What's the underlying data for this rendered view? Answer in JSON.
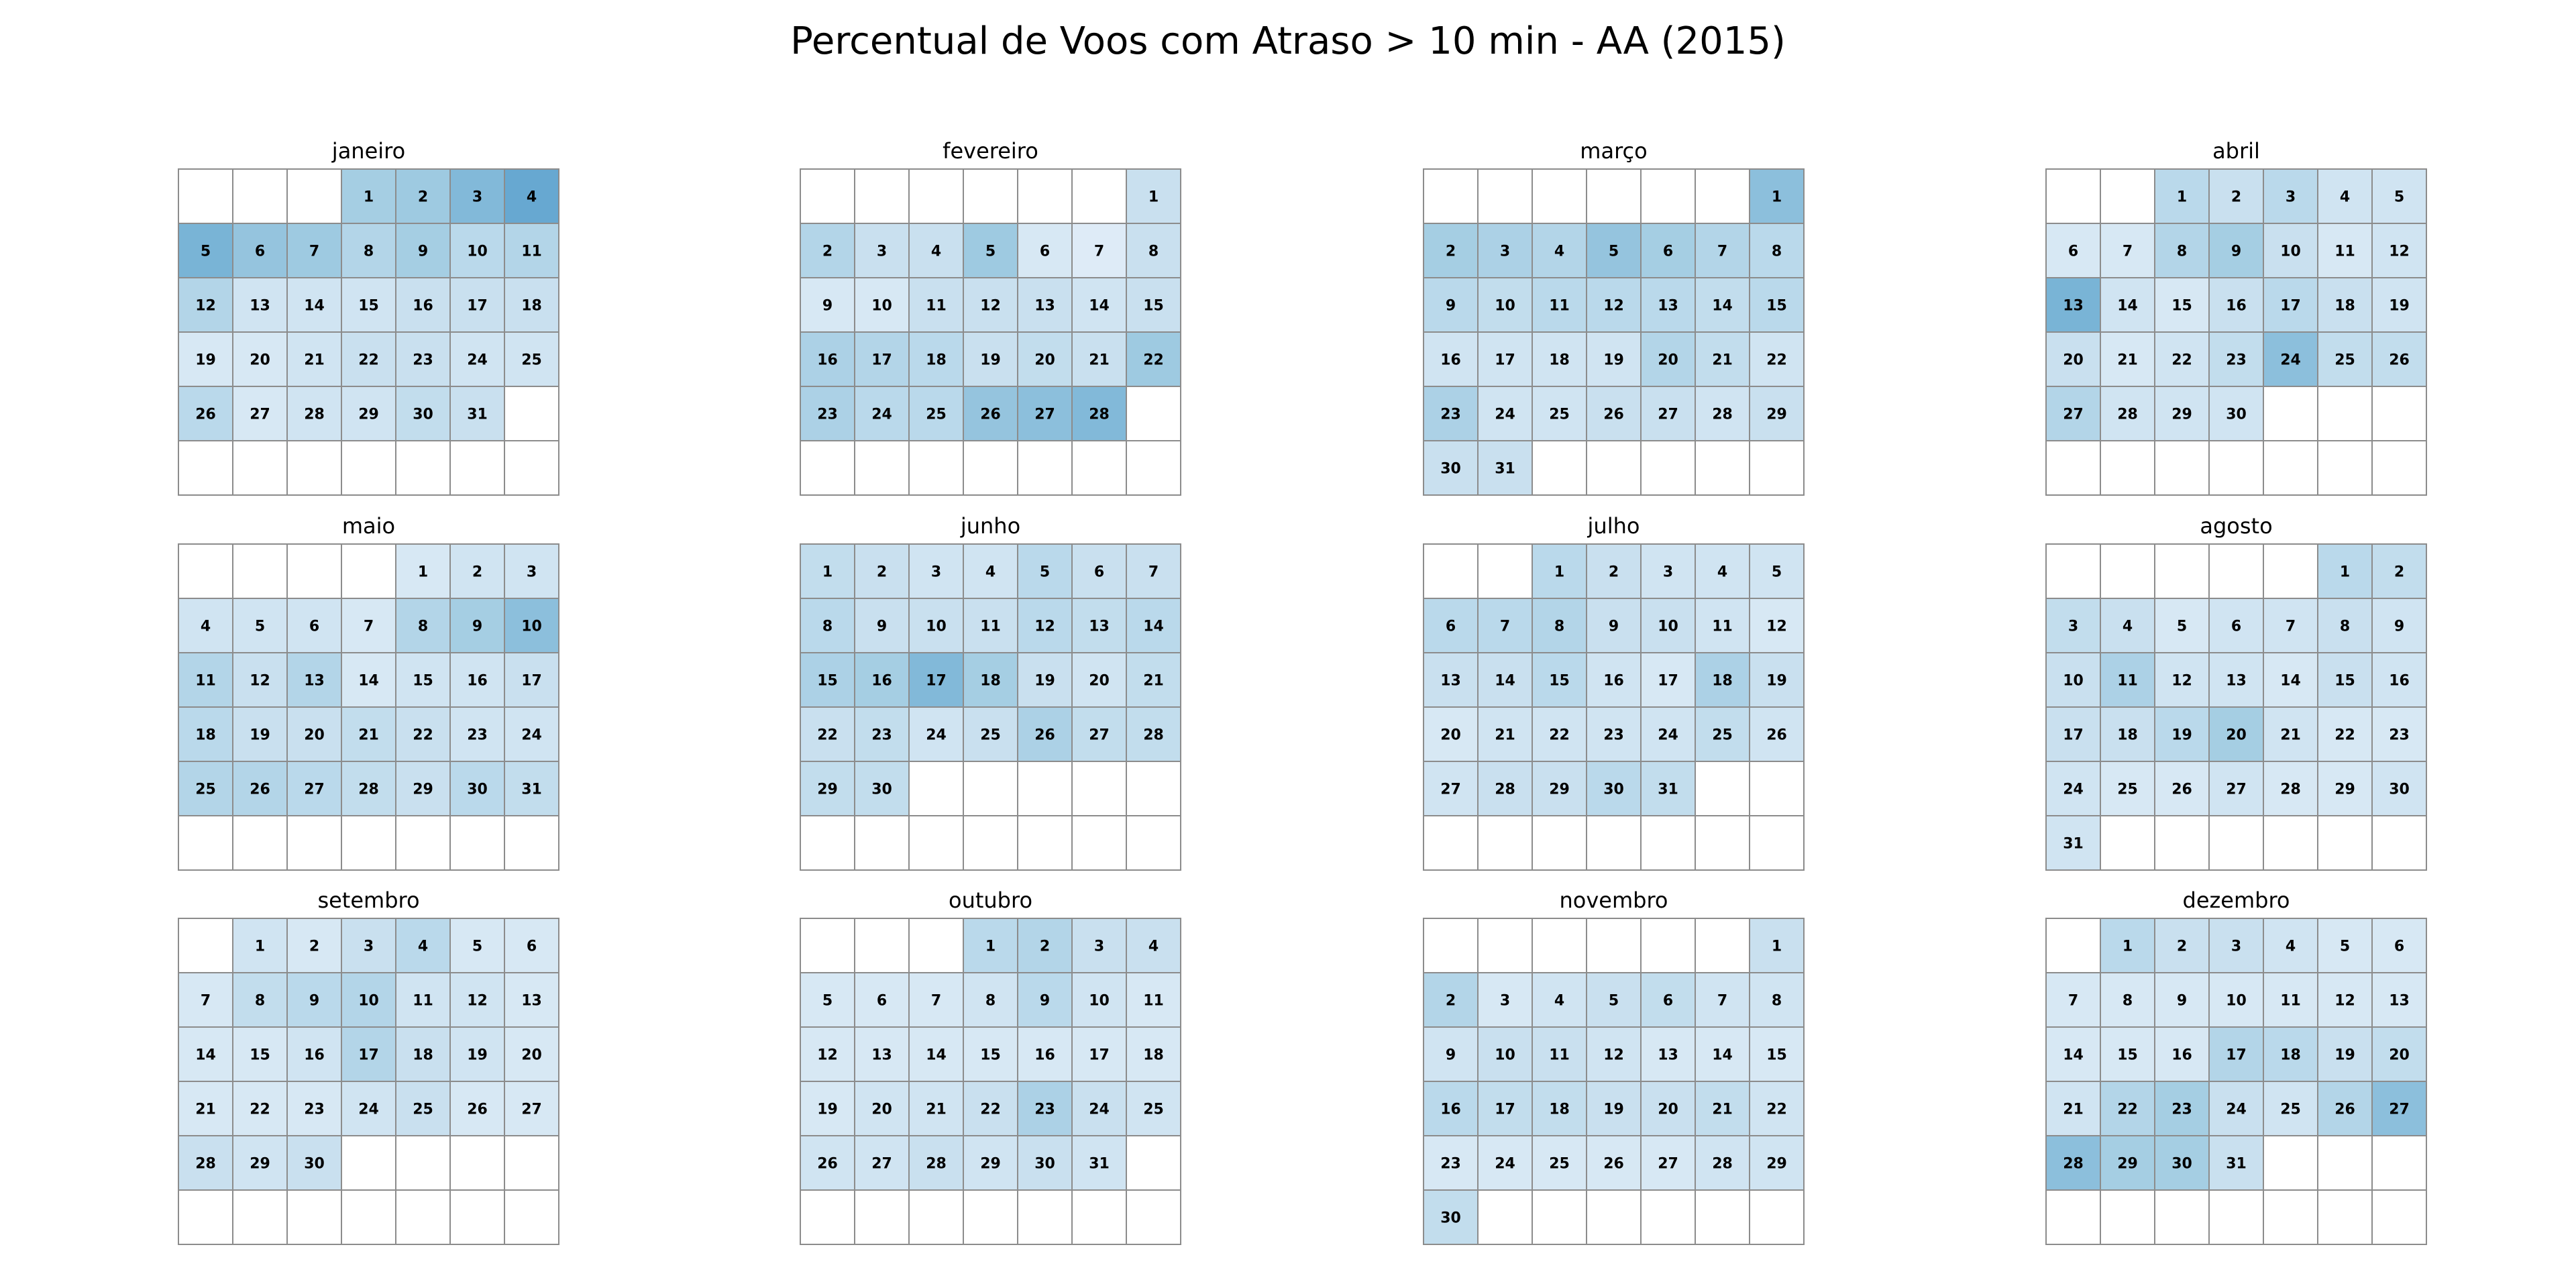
{
  "chart_data": {
    "type": "heatmap",
    "title": "Percentual de Voos com Atraso > 10 min - AA (2015)",
    "year": 2015,
    "layout": "calendar, weeks as rows, Monday-first columns",
    "color_scale": "white-to-blue (light #e5eff9 to #4292c6)",
    "value_units": "relative delay level (0 = lowest, 1 = highest), estimated from cell color",
    "months": [
      {
        "name": "janeiro",
        "first_weekday": 3,
        "days": 31,
        "values": [
          0.45,
          0.5,
          0.65,
          0.8,
          0.7,
          0.55,
          0.5,
          0.35,
          0.45,
          0.3,
          0.35,
          0.35,
          0.15,
          0.15,
          0.15,
          0.2,
          0.2,
          0.2,
          0.1,
          0.1,
          0.15,
          0.2,
          0.2,
          0.15,
          0.15,
          0.3,
          0.1,
          0.15,
          0.15,
          0.25,
          0.2
        ]
      },
      {
        "name": "fevereiro",
        "first_weekday": 6,
        "days": 28,
        "values": [
          0.2,
          0.35,
          0.2,
          0.2,
          0.5,
          0.1,
          0.05,
          0.2,
          0.1,
          0.1,
          0.2,
          0.2,
          0.2,
          0.15,
          0.2,
          0.4,
          0.35,
          0.3,
          0.2,
          0.25,
          0.2,
          0.5,
          0.4,
          0.3,
          0.3,
          0.55,
          0.6,
          0.65
        ]
      },
      {
        "name": "março",
        "first_weekday": 6,
        "days": 31,
        "values": [
          0.6,
          0.45,
          0.4,
          0.35,
          0.55,
          0.45,
          0.35,
          0.3,
          0.3,
          0.25,
          0.3,
          0.3,
          0.3,
          0.25,
          0.3,
          0.15,
          0.15,
          0.15,
          0.15,
          0.35,
          0.25,
          0.15,
          0.4,
          0.15,
          0.15,
          0.2,
          0.2,
          0.15,
          0.2,
          0.2,
          0.2
        ]
      },
      {
        "name": "abril",
        "first_weekday": 2,
        "days": 30,
        "values": [
          0.3,
          0.2,
          0.3,
          0.15,
          0.15,
          0.1,
          0.1,
          0.35,
          0.45,
          0.2,
          0.1,
          0.15,
          0.7,
          0.15,
          0.1,
          0.2,
          0.3,
          0.2,
          0.15,
          0.2,
          0.1,
          0.15,
          0.25,
          0.6,
          0.25,
          0.25,
          0.35,
          0.15,
          0.15,
          0.15
        ]
      },
      {
        "name": "maio",
        "first_weekday": 4,
        "days": 31,
        "values": [
          0.1,
          0.15,
          0.15,
          0.15,
          0.15,
          0.15,
          0.1,
          0.35,
          0.45,
          0.6,
          0.35,
          0.2,
          0.35,
          0.1,
          0.15,
          0.15,
          0.2,
          0.3,
          0.2,
          0.2,
          0.25,
          0.2,
          0.15,
          0.15,
          0.35,
          0.35,
          0.3,
          0.25,
          0.2,
          0.3,
          0.25
        ]
      },
      {
        "name": "junho",
        "first_weekday": 0,
        "days": 30,
        "values": [
          0.25,
          0.2,
          0.15,
          0.15,
          0.3,
          0.2,
          0.2,
          0.3,
          0.2,
          0.2,
          0.2,
          0.3,
          0.25,
          0.3,
          0.4,
          0.45,
          0.65,
          0.45,
          0.2,
          0.15,
          0.25,
          0.2,
          0.25,
          0.15,
          0.2,
          0.4,
          0.25,
          0.25,
          0.25,
          0.25
        ]
      },
      {
        "name": "julho",
        "first_weekday": 2,
        "days": 31,
        "values": [
          0.3,
          0.2,
          0.15,
          0.15,
          0.15,
          0.3,
          0.3,
          0.35,
          0.2,
          0.2,
          0.15,
          0.1,
          0.2,
          0.2,
          0.3,
          0.15,
          0.1,
          0.4,
          0.2,
          0.1,
          0.15,
          0.15,
          0.15,
          0.15,
          0.25,
          0.15,
          0.15,
          0.2,
          0.2,
          0.3,
          0.25
        ]
      },
      {
        "name": "agosto",
        "first_weekday": 5,
        "days": 31,
        "values": [
          0.3,
          0.25,
          0.25,
          0.2,
          0.1,
          0.15,
          0.15,
          0.2,
          0.15,
          0.2,
          0.4,
          0.15,
          0.15,
          0.1,
          0.2,
          0.15,
          0.2,
          0.2,
          0.3,
          0.45,
          0.15,
          0.1,
          0.1,
          0.15,
          0.1,
          0.1,
          0.15,
          0.1,
          0.1,
          0.15,
          0.15
        ]
      },
      {
        "name": "setembro",
        "first_weekday": 1,
        "days": 30,
        "values": [
          0.15,
          0.1,
          0.2,
          0.3,
          0.1,
          0.1,
          0.1,
          0.25,
          0.3,
          0.35,
          0.15,
          0.15,
          0.1,
          0.1,
          0.1,
          0.15,
          0.35,
          0.2,
          0.15,
          0.1,
          0.1,
          0.1,
          0.1,
          0.15,
          0.2,
          0.1,
          0.1,
          0.2,
          0.15,
          0.2
        ]
      },
      {
        "name": "outubro",
        "first_weekday": 3,
        "days": 31,
        "values": [
          0.3,
          0.35,
          0.2,
          0.2,
          0.1,
          0.1,
          0.1,
          0.15,
          0.3,
          0.15,
          0.1,
          0.1,
          0.1,
          0.1,
          0.1,
          0.1,
          0.1,
          0.1,
          0.1,
          0.15,
          0.15,
          0.2,
          0.4,
          0.2,
          0.15,
          0.15,
          0.15,
          0.2,
          0.15,
          0.2,
          0.15
        ]
      },
      {
        "name": "novembro",
        "first_weekday": 6,
        "days": 30,
        "values": [
          0.2,
          0.35,
          0.1,
          0.15,
          0.2,
          0.25,
          0.15,
          0.15,
          0.15,
          0.2,
          0.2,
          0.15,
          0.1,
          0.1,
          0.1,
          0.3,
          0.25,
          0.25,
          0.2,
          0.2,
          0.25,
          0.15,
          0.1,
          0.1,
          0.1,
          0.1,
          0.1,
          0.15,
          0.15,
          0.25
        ]
      },
      {
        "name": "dezembro",
        "first_weekday": 1,
        "days": 31,
        "values": [
          0.3,
          0.2,
          0.2,
          0.15,
          0.1,
          0.1,
          0.1,
          0.1,
          0.1,
          0.1,
          0.1,
          0.1,
          0.1,
          0.1,
          0.1,
          0.1,
          0.35,
          0.3,
          0.2,
          0.25,
          0.15,
          0.35,
          0.45,
          0.2,
          0.15,
          0.35,
          0.6,
          0.6,
          0.45,
          0.45,
          0.2
        ]
      }
    ]
  }
}
